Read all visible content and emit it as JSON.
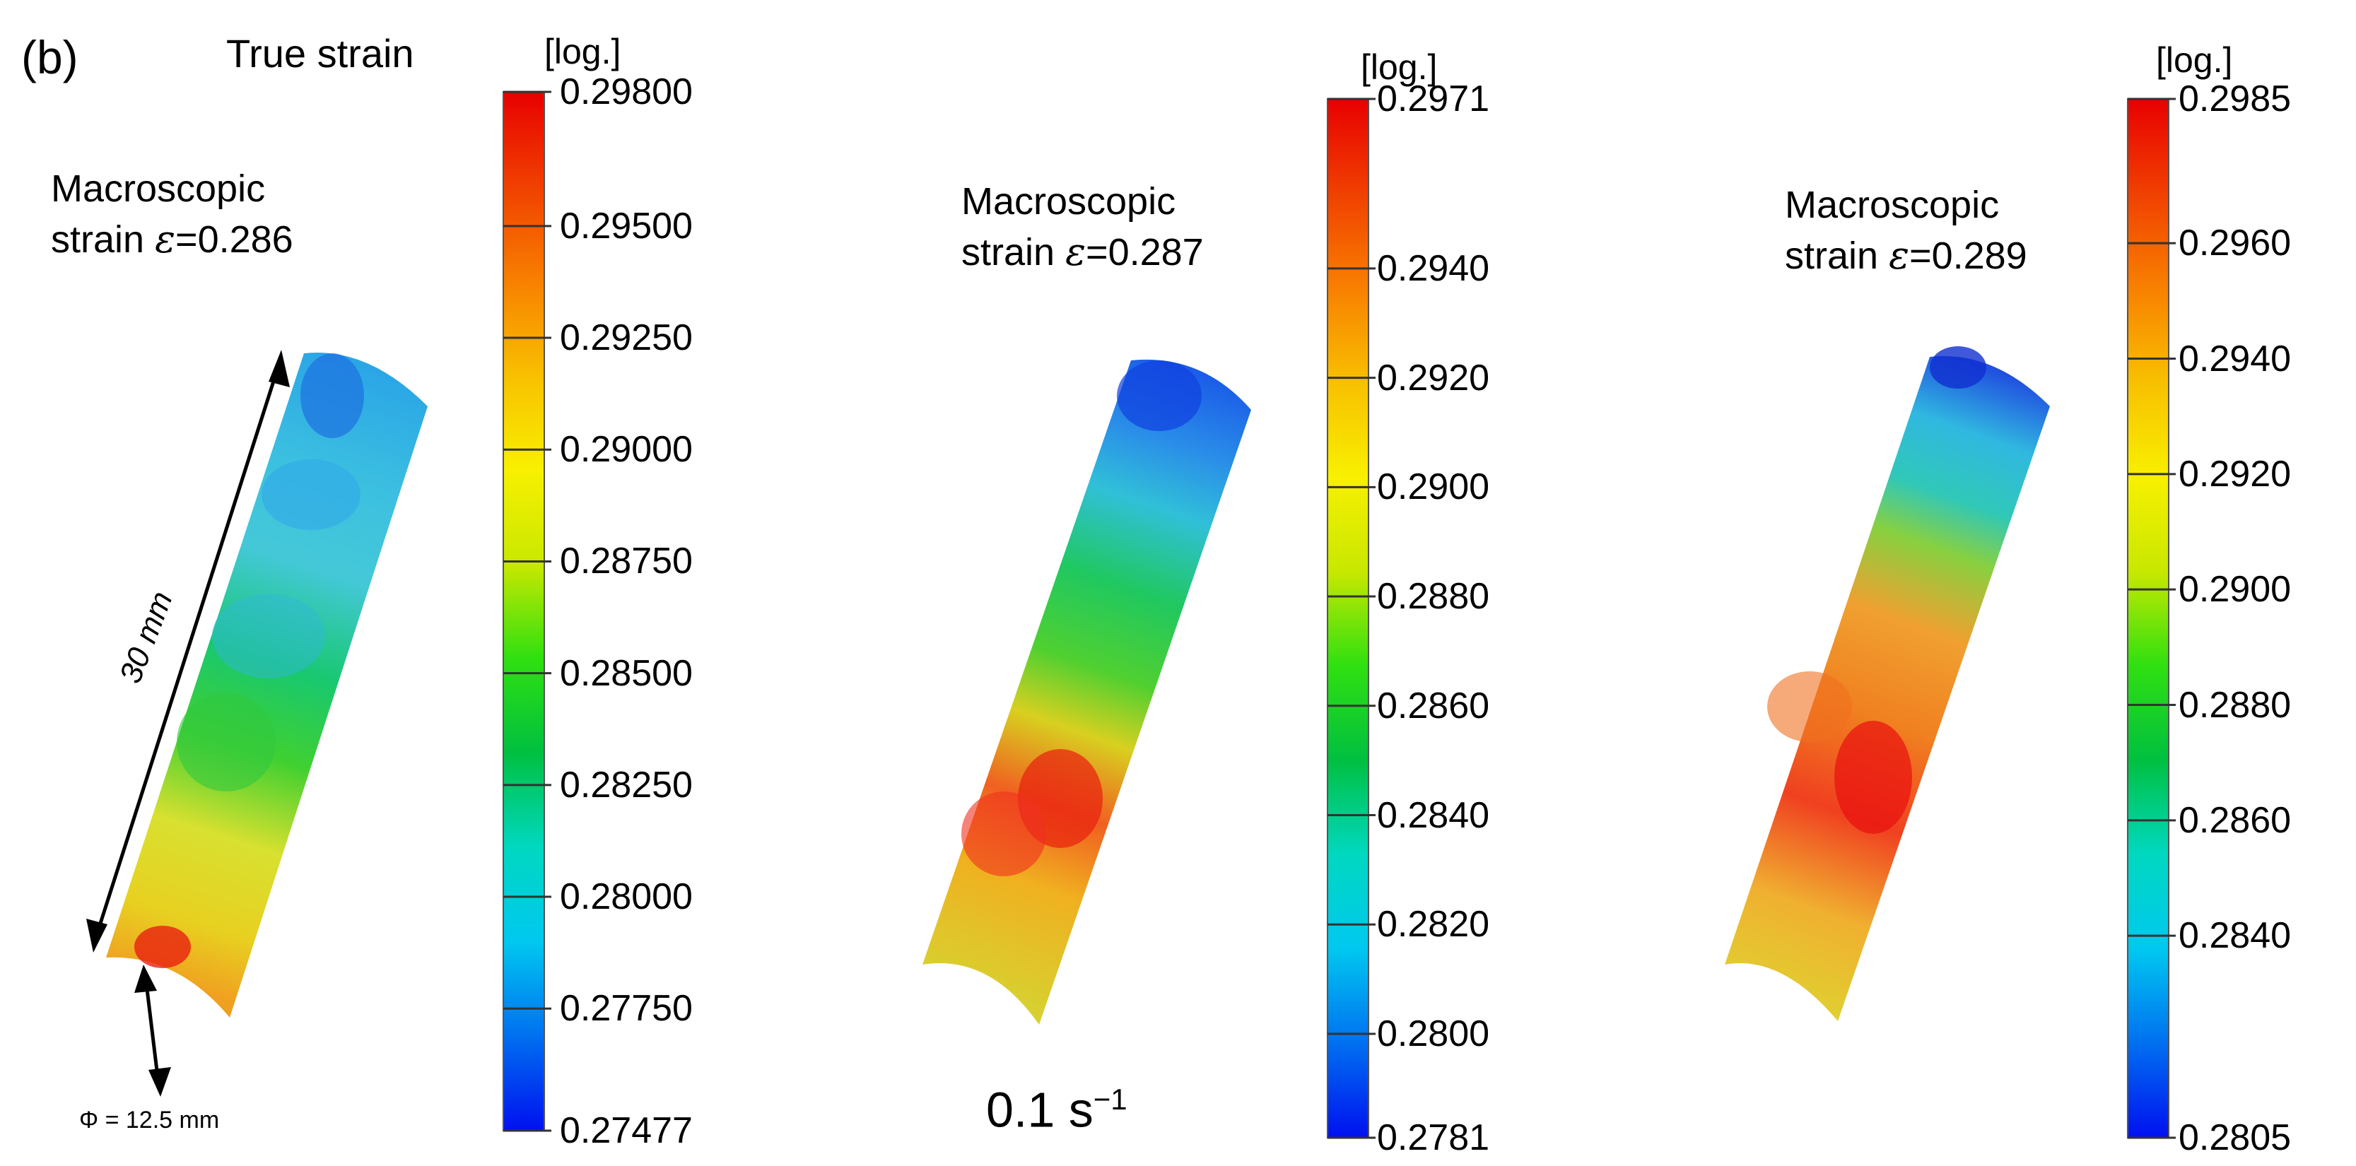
{
  "panel_label": "(b)",
  "title": "True strain",
  "dimensions": {
    "length": "30 mm",
    "diameter": "Φ = 12.5 mm"
  },
  "strain_rate": {
    "value": "0.1 s",
    "exponent": "−1"
  },
  "panels": [
    {
      "unit": "[log.]",
      "macro_line1": "Macroscopic",
      "macro_prefix": "strain ",
      "macro_symbol": "ε",
      "macro_value": "=0.286",
      "scale_min": 0.27477,
      "scale_max": 0.298,
      "ticks": [
        "0.29800",
        "0.29500",
        "0.29250",
        "0.29000",
        "0.28750",
        "0.28500",
        "0.28250",
        "0.28000",
        "0.27750",
        "0.27477"
      ]
    },
    {
      "unit": "[log.]",
      "macro_line1": "Macroscopic",
      "macro_prefix": "strain ",
      "macro_symbol": "ε",
      "macro_value": "=0.287",
      "scale_min": 0.2781,
      "scale_max": 0.2971,
      "ticks": [
        "0.2971",
        "0.2940",
        "0.2920",
        "0.2900",
        "0.2880",
        "0.2860",
        "0.2840",
        "0.2820",
        "0.2800",
        "0.2781"
      ]
    },
    {
      "unit": "[log.]",
      "macro_line1": "Macroscopic",
      "macro_prefix": "strain ",
      "macro_symbol": "ε",
      "macro_value": "=0.289",
      "scale_min": 0.2805,
      "scale_max": 0.2985,
      "ticks": [
        "0.2985",
        "0.2960",
        "0.2940",
        "0.2920",
        "0.2900",
        "0.2880",
        "0.2860",
        "0.2840",
        "0.2805"
      ]
    }
  ],
  "colormap": [
    "#0010f0",
    "#0070f0",
    "#00c8f0",
    "#00d8c0",
    "#00c040",
    "#30e010",
    "#c8e800",
    "#f8f000",
    "#f8c000",
    "#f88000",
    "#f04000",
    "#e80000"
  ]
}
